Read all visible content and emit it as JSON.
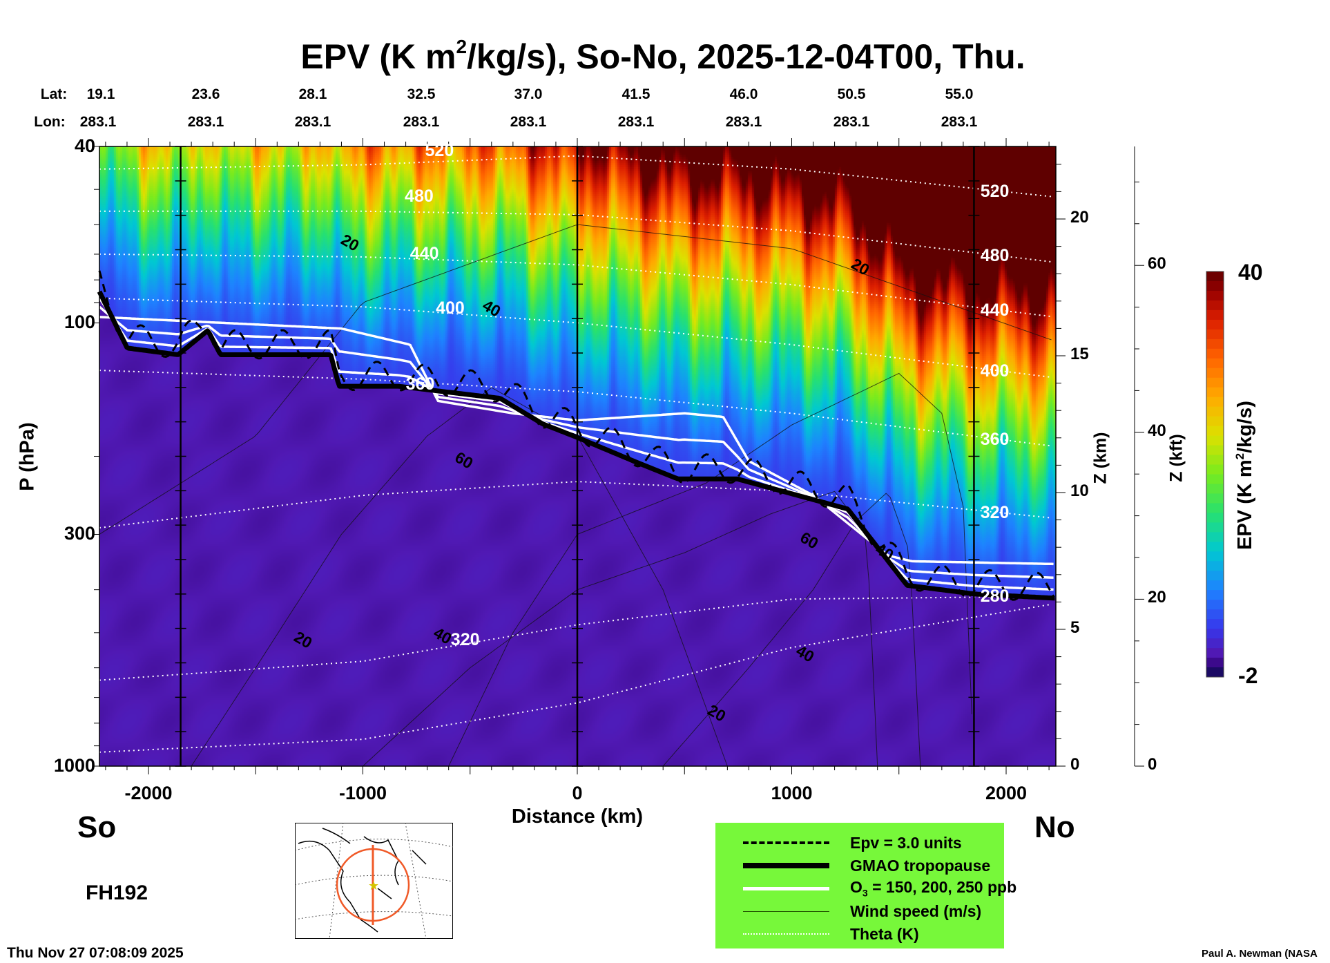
{
  "title": {
    "pre": "EPV (K m",
    "sup": "2",
    "post": "/kg/s), So-No, 2025-12-04T00, Thu."
  },
  "lat_label": "Lat:",
  "lon_label": "Lon:",
  "lats": [
    "19.1",
    "23.6",
    "28.1",
    "32.5",
    "37.0",
    "41.5",
    "46.0",
    "50.5",
    "55.0"
  ],
  "lons": [
    "283.1",
    "283.1",
    "283.1",
    "283.1",
    "283.1",
    "283.1",
    "283.1",
    "283.1",
    "283.1"
  ],
  "ends": {
    "south": "So",
    "north": "No"
  },
  "forecast_hour": "FH192",
  "timestamp": "Thu Nov 27 07:08:09 2025",
  "credit": "Paul A. Newman (NASA",
  "legend": {
    "epv": "Epv = 3.0 units",
    "tropopause": "GMAO tropopause",
    "o3_pre": "O",
    "o3_sub": "3",
    "o3_post": " = 150, 200, 250 ppb",
    "wind": "Wind speed (m/s)",
    "theta": "Theta (K)"
  },
  "colors": {
    "legend_bg": "#77f83a",
    "map_circle": "#f05a28"
  },
  "chart_data": {
    "type": "heatmap",
    "title": "EPV (K m2/kg/s), So-No, 2025-12-04T00, Thu.",
    "xlabel": "Distance (km)",
    "ylabel": "P (hPa)",
    "y2label": "Z (km)",
    "y3label": "Z (kft)",
    "xlim": [
      -2230,
      2230
    ],
    "ylim": [
      1000,
      40
    ],
    "xticks": [
      -2000,
      -1000,
      0,
      1000,
      2000
    ],
    "xtick_labels": [
      "-2000",
      "-1000",
      "0",
      "1000",
      "2000"
    ],
    "yticks": [
      40,
      100,
      300,
      1000
    ],
    "ytick_labels": [
      "40",
      "100",
      "300",
      "1000"
    ],
    "zkm_ticks": [
      "0",
      "5",
      "10",
      "15",
      "20"
    ],
    "zkft_ticks": [
      "0",
      "20",
      "40",
      "60"
    ],
    "colorbar": {
      "label_pre": "EPV (K m",
      "label_sup": "2",
      "label_post": "/kg/s)",
      "min": -2,
      "max": 40,
      "min_label": "-2",
      "max_label": "40"
    },
    "section_lines_km": [
      -1850,
      0,
      1850
    ],
    "tropopause": [
      [
        -2229,
        85
      ],
      [
        -2099,
        114
      ],
      [
        -1862,
        118
      ],
      [
        -1723,
        104
      ],
      [
        -1664,
        118
      ],
      [
        -1150,
        118
      ],
      [
        -1111,
        139
      ],
      [
        -834,
        139
      ],
      [
        -360,
        148
      ],
      [
        -162,
        169
      ],
      [
        -4,
        181
      ],
      [
        273,
        206
      ],
      [
        470,
        225
      ],
      [
        747,
        225
      ],
      [
        1261,
        263
      ],
      [
        1538,
        391
      ],
      [
        1854,
        409
      ],
      [
        2229,
        418
      ]
    ],
    "o3_top": [
      [
        -2229,
        97
      ],
      [
        -1100,
        103
      ],
      [
        -780,
        112
      ],
      [
        -650,
        150
      ],
      [
        -300,
        160
      ],
      [
        0,
        166
      ],
      [
        500,
        160
      ],
      [
        680,
        163
      ],
      [
        800,
        205
      ],
      [
        1100,
        245
      ],
      [
        1450,
        335
      ],
      [
        1560,
        345
      ],
      [
        2229,
        350
      ]
    ],
    "theta_lines": [
      {
        "label": "520",
        "points": [
          [
            -2229,
            45
          ],
          [
            -1000,
            44
          ],
          [
            0,
            42
          ],
          [
            1000,
            45
          ],
          [
            2229,
            52
          ]
        ]
      },
      {
        "label": "480",
        "points": [
          [
            -2229,
            56
          ],
          [
            -1000,
            56
          ],
          [
            0,
            57
          ],
          [
            1000,
            62
          ],
          [
            2229,
            73
          ]
        ]
      },
      {
        "label": "440",
        "points": [
          [
            -2229,
            70
          ],
          [
            -1000,
            71
          ],
          [
            0,
            74
          ],
          [
            1000,
            82
          ],
          [
            2229,
            97
          ]
        ]
      },
      {
        "label": "400",
        "points": [
          [
            -2229,
            88
          ],
          [
            -1000,
            92
          ],
          [
            0,
            100
          ],
          [
            1000,
            112
          ],
          [
            2229,
            133
          ]
        ]
      },
      {
        "label": "360",
        "points": [
          [
            -2229,
            128
          ],
          [
            -1000,
            134
          ],
          [
            0,
            143
          ],
          [
            1000,
            160
          ],
          [
            2229,
            190
          ]
        ]
      },
      {
        "label": "320",
        "points": [
          [
            -2229,
            290
          ],
          [
            -1000,
            245
          ],
          [
            0,
            228
          ],
          [
            1000,
            240
          ],
          [
            2229,
            276
          ]
        ]
      },
      {
        "label": "280",
        "points": [
          [
            -2229,
            640
          ],
          [
            -1000,
            580
          ],
          [
            0,
            480
          ],
          [
            1000,
            420
          ],
          [
            2229,
            414
          ]
        ]
      },
      {
        "label": "",
        "points": [
          [
            -2229,
            930
          ],
          [
            -1000,
            870
          ],
          [
            0,
            720
          ],
          [
            1000,
            540
          ],
          [
            2229,
            430
          ]
        ]
      }
    ],
    "theta_inline_labels": [
      {
        "text": "520",
        "km": -710,
        "p": 41
      },
      {
        "text": "480",
        "km": -805,
        "p": 52
      },
      {
        "text": "440",
        "km": -780,
        "p": 70
      },
      {
        "text": "400",
        "km": -660,
        "p": 93
      },
      {
        "text": "360",
        "km": -800,
        "p": 138
      },
      {
        "text": "320",
        "km": -590,
        "p": 520
      }
    ],
    "wind_labels": [
      {
        "text": "20",
        "km": -1100,
        "p": 66
      },
      {
        "text": "20",
        "km": 1280,
        "p": 75
      },
      {
        "text": "20",
        "km": -1320,
        "p": 520
      },
      {
        "text": "20",
        "km": 610,
        "p": 760
      },
      {
        "text": "40",
        "km": -440,
        "p": 93
      },
      {
        "text": "40",
        "km": -670,
        "p": 510
      },
      {
        "text": "40",
        "km": 1020,
        "p": 560
      },
      {
        "text": "40",
        "km": 1390,
        "p": 330
      },
      {
        "text": "60",
        "km": -570,
        "p": 205
      },
      {
        "text": "60",
        "km": 1040,
        "p": 310
      }
    ]
  }
}
